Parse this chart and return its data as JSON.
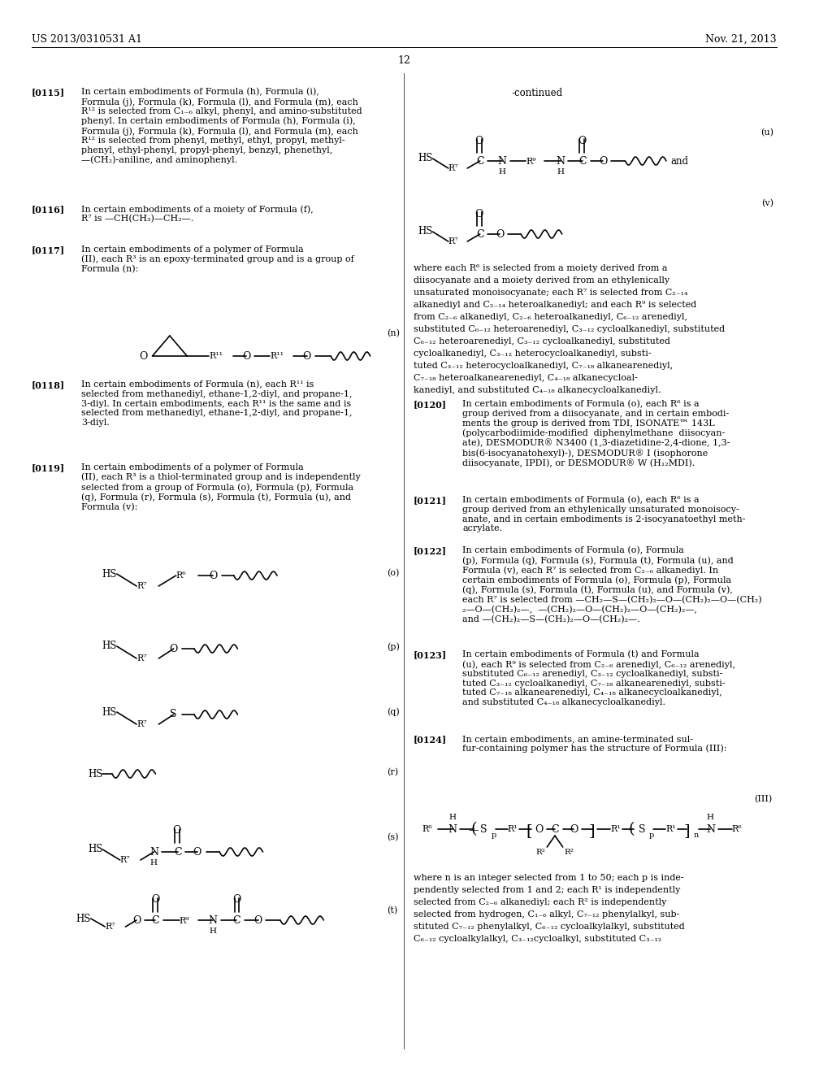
{
  "bg": "#ffffff",
  "header_left": "US 2013/0310531 A1",
  "header_right": "Nov. 21, 2013",
  "page_num": "12"
}
